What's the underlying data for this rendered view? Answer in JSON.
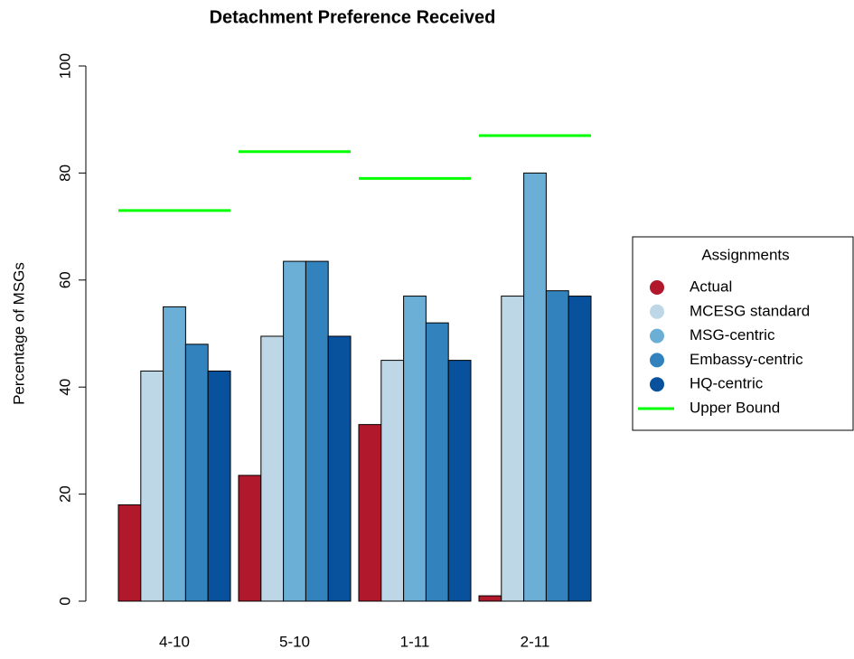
{
  "chart_data": {
    "type": "bar",
    "title": "Detachment Preference Received",
    "y_label": "Percentage of MSGs",
    "categories": [
      "4-10",
      "5-10",
      "1-11",
      "2-11"
    ],
    "series": [
      {
        "name": "Actual",
        "color": "#b2182b",
        "values": [
          18,
          23.5,
          33,
          1
        ]
      },
      {
        "name": "MCESG standard",
        "color": "#bdd7e7",
        "values": [
          43,
          49.5,
          45,
          57
        ]
      },
      {
        "name": "MSG-centric",
        "color": "#6baed6",
        "values": [
          55,
          63.5,
          57,
          80
        ]
      },
      {
        "name": "Embassy-centric",
        "color": "#3182bd",
        "values": [
          48,
          63.5,
          52,
          58
        ]
      },
      {
        "name": "HQ-centric",
        "color": "#08519c",
        "values": [
          43,
          49.5,
          45,
          57
        ]
      }
    ],
    "upper_bound": {
      "name": "Upper Bound",
      "color": "#00ff00",
      "values": [
        73,
        84,
        79,
        87
      ]
    },
    "legend_title": "Assignments",
    "legend_position": "right",
    "ylim": [
      0,
      100
    ],
    "yticks": [
      0,
      20,
      40,
      60,
      80,
      100
    ]
  }
}
